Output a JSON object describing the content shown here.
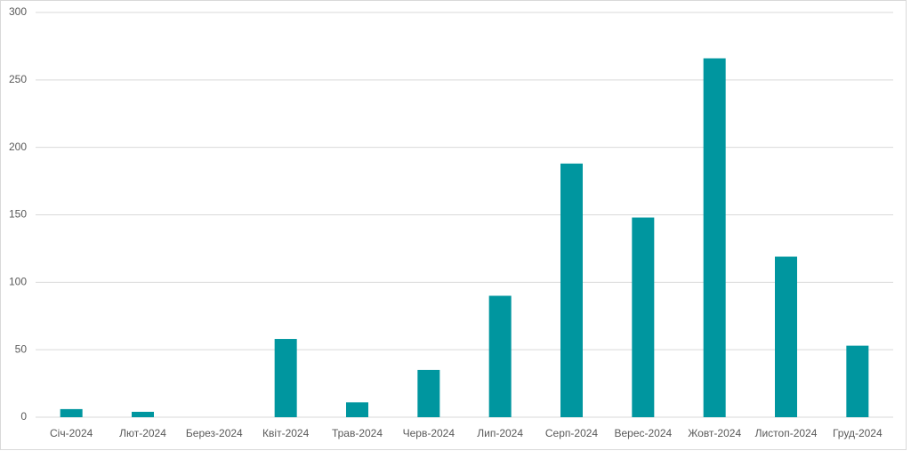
{
  "chart_data": {
    "type": "bar",
    "categories": [
      "Січ-2024",
      "Лют-2024",
      "Берез-2024",
      "Квіт-2024",
      "Трав-2024",
      "Черв-2024",
      "Лип-2024",
      "Серп-2024",
      "Верес-2024",
      "Жовт-2024",
      "Листоп-2024",
      "Груд-2024"
    ],
    "values": [
      6,
      4,
      0,
      58,
      11,
      35,
      90,
      188,
      148,
      266,
      119,
      53
    ],
    "color": "#00969f",
    "ylim": [
      0,
      300
    ],
    "yticks": [
      0,
      50,
      100,
      150,
      200,
      250,
      300
    ],
    "grid": true
  }
}
